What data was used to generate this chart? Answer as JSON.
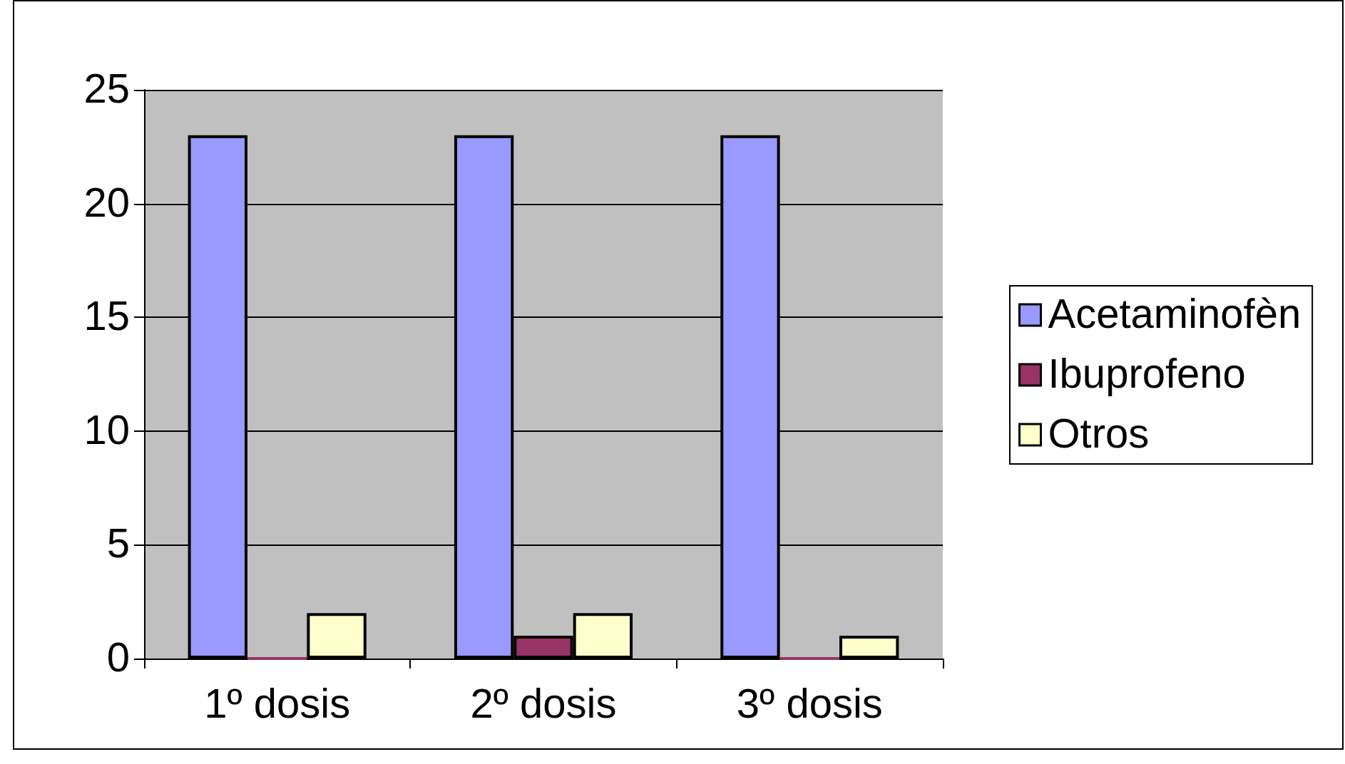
{
  "chart_data": {
    "type": "bar",
    "categories": [
      "1º dosis",
      "2º dosis",
      "3º dosis"
    ],
    "series": [
      {
        "name": "Acetaminofèn",
        "color": "#9999ff",
        "values": [
          23,
          23,
          23
        ]
      },
      {
        "name": "Ibuprofeno",
        "color": "#993366",
        "values": [
          0,
          1,
          0
        ]
      },
      {
        "name": "Otros",
        "color": "#ffffcc",
        "values": [
          2,
          2,
          1
        ]
      }
    ],
    "ylim": [
      0,
      25
    ],
    "yticks": [
      0,
      5,
      10,
      15,
      20,
      25
    ],
    "grid": "y",
    "legend": "right"
  }
}
